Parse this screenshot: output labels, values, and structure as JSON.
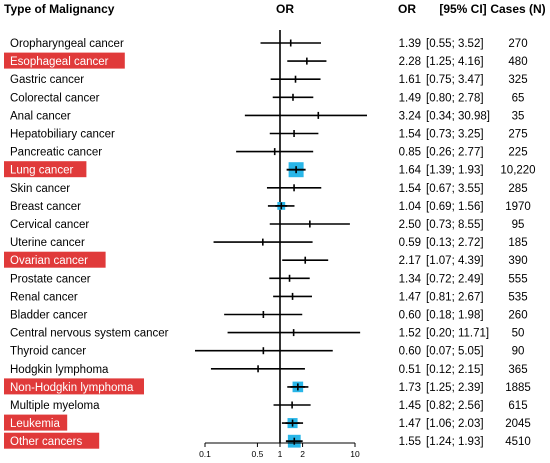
{
  "headers": {
    "malignancy": "Type of Malignancy",
    "or_plot": "OR",
    "or": "OR",
    "ci": "[95% CI]",
    "cases": "Cases (N)"
  },
  "chart_data": {
    "type": "forest",
    "x_scale": "log",
    "xlim": [
      0.1,
      10
    ],
    "reference_line": 1,
    "x_ticks": [
      {
        "value": 0.1,
        "label": "0.1"
      },
      {
        "value": 0.5,
        "label": "0.5"
      },
      {
        "value": 1,
        "label": "1"
      },
      {
        "value": 2,
        "label": "2"
      },
      {
        "value": 10,
        "label": "10"
      }
    ],
    "highlight_color": "#e03a3a",
    "box_color": "#29b6e8",
    "rows": [
      {
        "label": "Oropharyngeal cancer",
        "or": 1.39,
        "lo": 0.55,
        "hi": 3.52,
        "or_text": "1.39",
        "ci_text": "[0.55;  3.52]",
        "cases": "270",
        "highlight": false,
        "box": false
      },
      {
        "label": "Esophageal cancer",
        "or": 2.28,
        "lo": 1.25,
        "hi": 4.16,
        "or_text": "2.28",
        "ci_text": "[1.25;  4.16]",
        "cases": "480",
        "highlight": true,
        "box": false
      },
      {
        "label": "Gastric cancer",
        "or": 1.61,
        "lo": 0.75,
        "hi": 3.47,
        "or_text": "1.61",
        "ci_text": "[0.75;  3.47]",
        "cases": "325",
        "highlight": false,
        "box": false
      },
      {
        "label": "Colorectal cancer",
        "or": 1.49,
        "lo": 0.8,
        "hi": 2.78,
        "or_text": "1.49",
        "ci_text": "[0.80;  2.78]",
        "cases": "65",
        "highlight": false,
        "box": false
      },
      {
        "label": "Anal cancer",
        "or": 3.24,
        "lo": 0.34,
        "hi": 30.98,
        "or_text": "3.24",
        "ci_text": "[0.34; 30.98]",
        "cases": "35",
        "highlight": false,
        "box": false
      },
      {
        "label": "Hepatobiliary cancer",
        "or": 1.54,
        "lo": 0.73,
        "hi": 3.25,
        "or_text": "1.54",
        "ci_text": "[0.73;  3.25]",
        "cases": "275",
        "highlight": false,
        "box": false
      },
      {
        "label": "Pancreatic cancer",
        "or": 0.85,
        "lo": 0.26,
        "hi": 2.77,
        "or_text": "0.85",
        "ci_text": "[0.26;  2.77]",
        "cases": "225",
        "highlight": false,
        "box": false
      },
      {
        "label": "Lung cancer",
        "or": 1.64,
        "lo": 1.39,
        "hi": 1.93,
        "or_text": "1.64",
        "ci_text": "[1.39;  1.93]",
        "cases": "10,220",
        "highlight": true,
        "box": true,
        "box_weight": 1.0
      },
      {
        "label": "Skin cancer",
        "or": 1.54,
        "lo": 0.67,
        "hi": 3.55,
        "or_text": "1.54",
        "ci_text": "[0.67;  3.55]",
        "cases": "285",
        "highlight": false,
        "box": false
      },
      {
        "label": "Breast cancer",
        "or": 1.04,
        "lo": 0.69,
        "hi": 1.56,
        "or_text": "1.04",
        "ci_text": "[0.69;  1.56]",
        "cases": "1970",
        "highlight": false,
        "box": true,
        "box_weight": 0.35
      },
      {
        "label": "Cervical cancer",
        "or": 2.5,
        "lo": 0.73,
        "hi": 8.55,
        "or_text": "2.50",
        "ci_text": "[0.73;  8.55]",
        "cases": "95",
        "highlight": false,
        "box": false
      },
      {
        "label": "Uterine cancer",
        "or": 0.59,
        "lo": 0.13,
        "hi": 2.72,
        "or_text": "0.59",
        "ci_text": "[0.13;  2.72]",
        "cases": "185",
        "highlight": false,
        "box": false
      },
      {
        "label": "Ovarian cancer",
        "or": 2.17,
        "lo": 1.07,
        "hi": 4.39,
        "or_text": "2.17",
        "ci_text": "[1.07;  4.39]",
        "cases": "390",
        "highlight": true,
        "box": false
      },
      {
        "label": "Prostate cancer",
        "or": 1.34,
        "lo": 0.72,
        "hi": 2.49,
        "or_text": "1.34",
        "ci_text": "[0.72;  2.49]",
        "cases": "555",
        "highlight": false,
        "box": false
      },
      {
        "label": "Renal cancer",
        "or": 1.47,
        "lo": 0.81,
        "hi": 2.67,
        "or_text": "1.47",
        "ci_text": "[0.81;  2.67]",
        "cases": "535",
        "highlight": false,
        "box": false
      },
      {
        "label": "Bladder cancer",
        "or": 0.6,
        "lo": 0.18,
        "hi": 1.98,
        "or_text": "0.60",
        "ci_text": "[0.18;  1.98]",
        "cases": "260",
        "highlight": false,
        "box": false
      },
      {
        "label": "Central nervous system cancer",
        "or": 1.52,
        "lo": 0.2,
        "hi": 11.71,
        "or_text": "1.52",
        "ci_text": "[0.20; 11.71]",
        "cases": "50",
        "highlight": false,
        "box": false
      },
      {
        "label": "Thyroid cancer",
        "or": 0.6,
        "lo": 0.07,
        "hi": 5.05,
        "or_text": "0.60",
        "ci_text": "[0.07;  5.05]",
        "cases": "90",
        "highlight": false,
        "box": false
      },
      {
        "label": "Hodgkin lymphoma",
        "or": 0.51,
        "lo": 0.12,
        "hi": 2.15,
        "or_text": "0.51",
        "ci_text": "[0.12;  2.15]",
        "cases": "365",
        "highlight": false,
        "box": false
      },
      {
        "label": "Non-Hodgkin lymphoma",
        "or": 1.73,
        "lo": 1.25,
        "hi": 2.39,
        "or_text": "1.73",
        "ci_text": "[1.25;  2.39]",
        "cases": "1885",
        "highlight": true,
        "box": true,
        "box_weight": 0.6
      },
      {
        "label": "Multiple myeloma",
        "or": 1.45,
        "lo": 0.82,
        "hi": 2.56,
        "or_text": "1.45",
        "ci_text": "[0.82;  2.56]",
        "cases": "615",
        "highlight": false,
        "box": false
      },
      {
        "label": "Leukemia",
        "or": 1.47,
        "lo": 1.06,
        "hi": 2.03,
        "or_text": "1.47",
        "ci_text": "[1.06;  2.03]",
        "cases": "2045",
        "highlight": true,
        "box": true,
        "box_weight": 0.55
      },
      {
        "label": "Other cancers",
        "or": 1.55,
        "lo": 1.24,
        "hi": 1.93,
        "or_text": "1.55",
        "ci_text": "[1.24;  1.93]",
        "cases": "4510",
        "highlight": true,
        "box": true,
        "box_weight": 0.8
      }
    ]
  }
}
